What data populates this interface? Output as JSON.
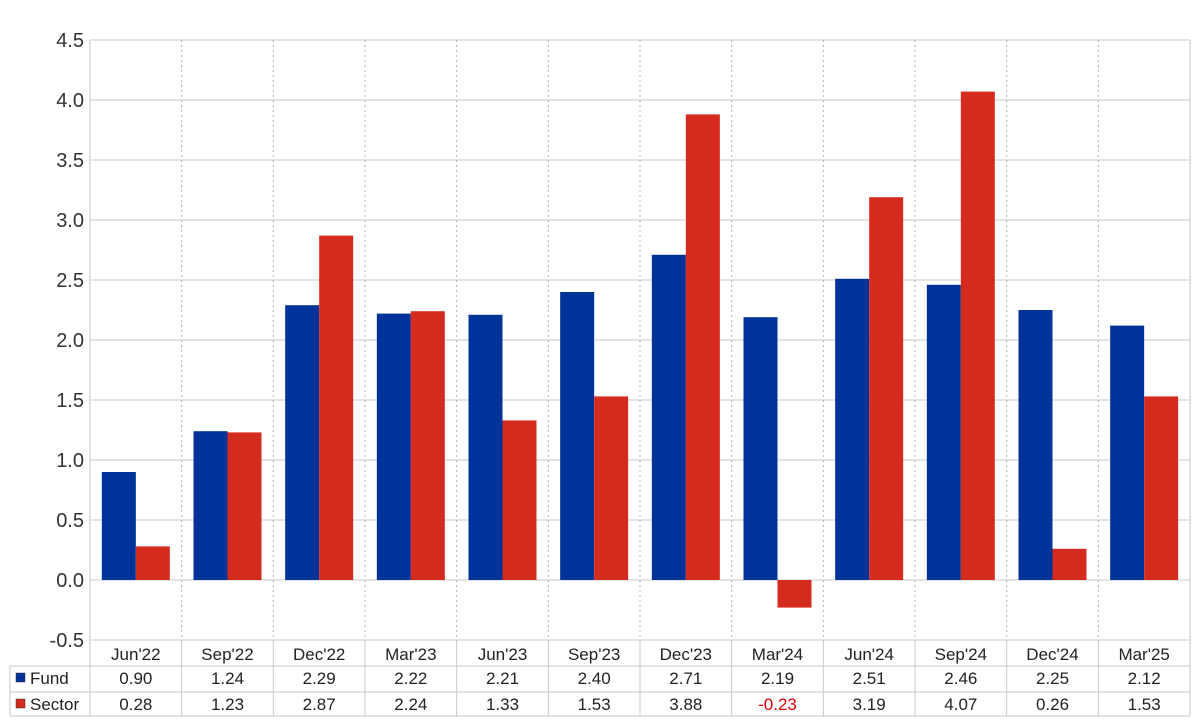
{
  "chart_data": {
    "type": "bar",
    "categories": [
      "Jun'22",
      "Sep'22",
      "Dec'22",
      "Mar'23",
      "Jun'23",
      "Sep'23",
      "Dec'23",
      "Mar'24",
      "Jun'24",
      "Sep'24",
      "Dec'24",
      "Mar'25"
    ],
    "series": [
      {
        "name": "Fund",
        "color": "#003399",
        "values": [
          0.9,
          1.24,
          2.29,
          2.22,
          2.21,
          2.4,
          2.71,
          2.19,
          2.51,
          2.46,
          2.25,
          2.12
        ],
        "labels": [
          "0.90",
          "1.24",
          "2.29",
          "2.22",
          "2.21",
          "2.40",
          "2.71",
          "2.19",
          "2.51",
          "2.46",
          "2.25",
          "2.12"
        ]
      },
      {
        "name": "Sector",
        "color": "#d52b1e",
        "values": [
          0.28,
          1.23,
          2.87,
          2.24,
          1.33,
          1.53,
          3.88,
          -0.23,
          3.19,
          4.07,
          0.26,
          1.53
        ],
        "labels": [
          "0.28",
          "1.23",
          "2.87",
          "2.24",
          "1.33",
          "1.53",
          "3.88",
          "-0.23",
          "3.19",
          "4.07",
          "0.26",
          "1.53"
        ]
      }
    ],
    "yticks": [
      "-0.5",
      "0.0",
      "0.5",
      "1.0",
      "1.5",
      "2.0",
      "2.5",
      "3.0",
      "3.5",
      "4.0",
      "4.5"
    ],
    "ylim": [
      -0.5,
      4.5
    ],
    "grid": true,
    "legend": "data-table-bottom"
  },
  "colors": {
    "negative_text": "#e00000"
  }
}
